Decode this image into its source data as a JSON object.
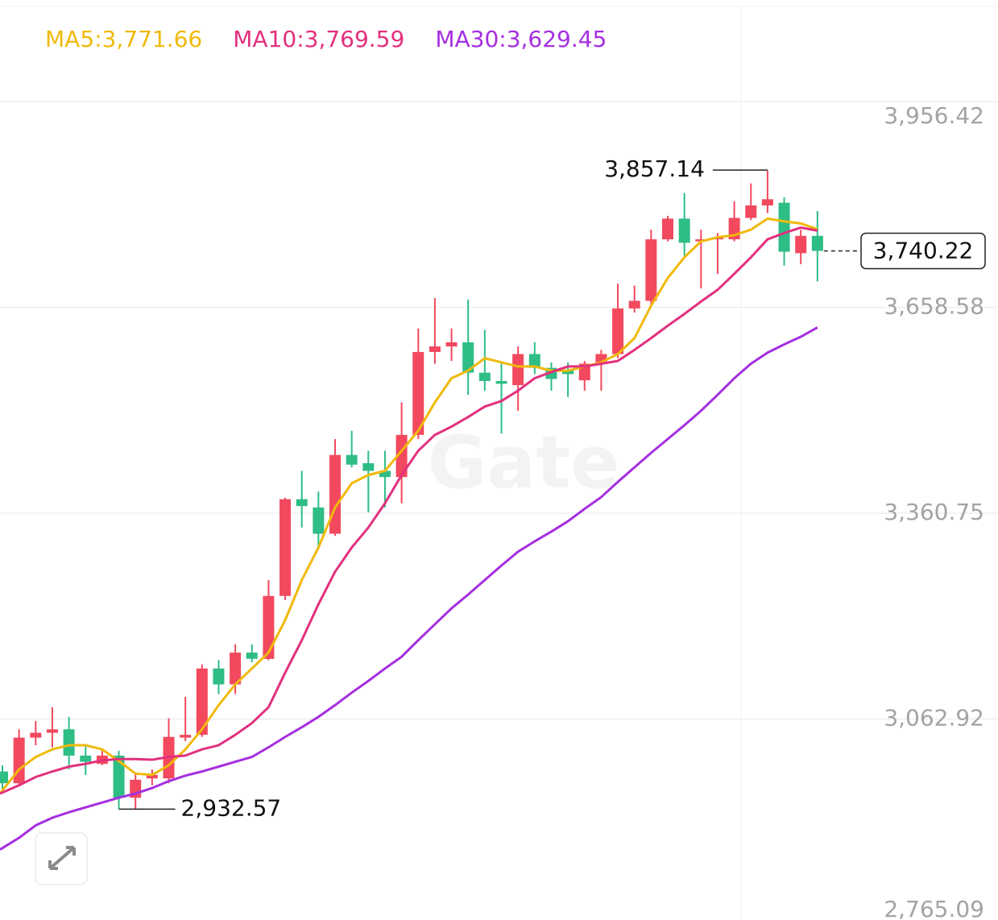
{
  "chart_data": {
    "type": "candlestick",
    "watermark": "Gate",
    "ylim": [
      2765.09,
      3956.42
    ],
    "yticks": [
      {
        "value": 3956.42,
        "label": "3,956.42"
      },
      {
        "value": 3658.58,
        "label": "3,658.58"
      },
      {
        "value": 3360.75,
        "label": "3,360.75"
      },
      {
        "value": 3062.92,
        "label": "3,062.92"
      },
      {
        "value": 2765.09,
        "label": "2,765.09"
      }
    ],
    "grid": true,
    "up_color": "#f2495e",
    "down_color": "#2ebd85",
    "open": [
      2987,
      2970,
      3036,
      3043,
      3048,
      3010,
      2998,
      3010,
      2949,
      2977,
      2977,
      3036,
      3040,
      3136,
      3113,
      3159,
      3150,
      3241,
      3381,
      3369,
      3331,
      3445,
      3433,
      3422,
      3413,
      3474,
      3594,
      3602,
      3608,
      3564,
      3552,
      3546,
      3591,
      3571,
      3567,
      3553,
      3577,
      3591,
      3657,
      3668,
      3757,
      3787,
      3754,
      3757,
      3757,
      3788,
      3806,
      3810,
      3737,
      3762
    ],
    "high": [
      2996,
      3048,
      3060,
      3080,
      3066,
      3025,
      3017,
      3017,
      2984,
      2990,
      3064,
      3095,
      3142,
      3148,
      3171,
      3171,
      3264,
      3383,
      3422,
      3392,
      3468,
      3480,
      3451,
      3451,
      3521,
      3628,
      3672,
      3628,
      3670,
      3626,
      3579,
      3602,
      3608,
      3579,
      3579,
      3581,
      3597,
      3693,
      3690,
      3771,
      3791,
      3824,
      3771,
      3766,
      3812,
      3838,
      3857.14,
      3818,
      3771,
      3798
    ],
    "low": [
      2955,
      2967,
      3025,
      3022,
      2990,
      2982,
      2996,
      2932.57,
      2933,
      2967,
      2970,
      3031,
      3037,
      3099,
      3099,
      3145,
      3148,
      3235,
      3340,
      3311,
      3328,
      3427,
      3362,
      3369,
      3375,
      3468,
      3577,
      3581,
      3532,
      3538,
      3476,
      3509,
      3562,
      3538,
      3529,
      3538,
      3538,
      3585,
      3651,
      3663,
      3754,
      3733,
      3686,
      3707,
      3754,
      3785,
      3795,
      3719,
      3721,
      3696
    ],
    "close": [
      2970,
      3036,
      3043,
      3048,
      3010,
      3001,
      3010,
      2949,
      2975,
      2982,
      3037,
      3040,
      3136,
      3113,
      3159,
      3150,
      3241,
      3381,
      3371,
      3331,
      3445,
      3431,
      3422,
      3413,
      3474,
      3594,
      3602,
      3608,
      3564,
      3552,
      3548,
      3591,
      3571,
      3555,
      3562,
      3577,
      3591,
      3657,
      3668,
      3757,
      3787,
      3752,
      3757,
      3760,
      3788,
      3806,
      3815,
      3739,
      3762,
      3740.22
    ],
    "series": [
      {
        "name": "MA5:3,771.66",
        "color": "#f0b90b",
        "values": [
          2955,
          2990,
          3008,
          3019,
          3025,
          3025,
          3019,
          3002,
          2984,
          2982,
          2996,
          3019,
          3048,
          3083,
          3113,
          3136,
          3159,
          3206,
          3264,
          3311,
          3369,
          3404,
          3416,
          3422,
          3451,
          3480,
          3521,
          3556,
          3567,
          3585,
          3579,
          3573,
          3573,
          3567,
          3567,
          3573,
          3579,
          3591,
          3614,
          3661,
          3701,
          3731,
          3754,
          3760,
          3763,
          3771,
          3787,
          3783,
          3780,
          3771.66
        ]
      },
      {
        "name": "MA10:3,769.59",
        "color": "#e2307e",
        "values": [
          2955,
          2967,
          2979,
          2987,
          2994,
          2998,
          3003,
          3005,
          3005,
          3004,
          3008,
          3010,
          3019,
          3025,
          3040,
          3057,
          3080,
          3130,
          3177,
          3229,
          3276,
          3311,
          3340,
          3375,
          3416,
          3451,
          3474,
          3486,
          3500,
          3515,
          3523,
          3538,
          3556,
          3565,
          3573,
          3573,
          3577,
          3581,
          3597,
          3614,
          3632,
          3649,
          3667,
          3684,
          3707,
          3731,
          3757,
          3766,
          3774,
          3769.59
        ]
      },
      {
        "name": "MA30:3,629.45",
        "color": "#a52fe0",
        "values": [
          2874,
          2891,
          2909,
          2920,
          2928,
          2935,
          2942,
          2949,
          2955,
          2963,
          2973,
          2981,
          2987,
          2994,
          3001,
          3008,
          3022,
          3037,
          3051,
          3066,
          3083,
          3101,
          3118,
          3136,
          3153,
          3177,
          3200,
          3223,
          3243,
          3264,
          3285,
          3305,
          3320,
          3334,
          3349,
          3367,
          3384,
          3406,
          3427,
          3448,
          3468,
          3488,
          3509,
          3532,
          3556,
          3577,
          3593,
          3605,
          3616,
          3629.45
        ]
      }
    ],
    "annotations": [
      {
        "label": "3,857.14",
        "value": 3857.14
      },
      {
        "label": "2,932.57",
        "value": 2932.57
      }
    ],
    "last_price": {
      "label": "3,740.22",
      "value": 3740.22
    }
  }
}
